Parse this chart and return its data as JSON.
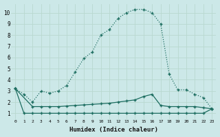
{
  "xlabel": "Humidex (Indice chaleur)",
  "xlim": [
    -0.5,
    23.5
  ],
  "ylim": [
    0.5,
    10.8
  ],
  "yticks": [
    1,
    2,
    3,
    4,
    5,
    6,
    7,
    8,
    9,
    10
  ],
  "xticks": [
    0,
    1,
    2,
    3,
    4,
    5,
    6,
    7,
    8,
    9,
    10,
    11,
    12,
    13,
    14,
    15,
    16,
    17,
    18,
    19,
    20,
    21,
    22,
    23
  ],
  "background_color": "#cce8e8",
  "line_color": "#1a6b5e",
  "grid_color": "#b8d8d0",
  "series": [
    {
      "x": [
        0,
        1,
        2,
        3,
        4,
        5,
        6,
        7,
        8,
        9,
        10,
        11,
        12,
        13,
        14,
        15,
        16,
        17,
        18,
        19,
        20,
        21,
        22,
        23
      ],
      "y": [
        3.2,
        1.0,
        1.0,
        1.0,
        1.0,
        1.0,
        1.0,
        1.0,
        1.0,
        1.0,
        1.0,
        1.0,
        1.0,
        1.0,
        1.0,
        1.0,
        1.0,
        1.0,
        1.0,
        1.0,
        1.0,
        1.0,
        1.0,
        1.4
      ],
      "dotted": false,
      "marker": "+"
    },
    {
      "x": [
        0,
        2,
        3,
        4,
        5,
        6,
        7,
        8,
        9,
        10,
        11,
        12,
        13,
        14,
        15,
        16,
        17,
        18,
        19,
        20,
        21,
        22,
        23
      ],
      "y": [
        3.2,
        1.6,
        1.6,
        1.6,
        1.6,
        1.65,
        1.7,
        1.75,
        1.8,
        1.85,
        1.9,
        2.0,
        2.1,
        2.2,
        2.5,
        2.7,
        1.7,
        1.6,
        1.6,
        1.6,
        1.6,
        1.5,
        1.4
      ],
      "dotted": false,
      "marker": "+"
    },
    {
      "x": [
        0,
        1,
        2,
        3,
        4,
        5,
        6,
        7,
        8,
        9,
        10,
        11,
        12,
        13,
        14,
        15,
        16,
        17,
        18,
        19,
        20,
        21,
        22,
        23
      ],
      "y": [
        3.2,
        2.7,
        2.0,
        3.0,
        2.8,
        3.0,
        3.5,
        4.7,
        5.9,
        6.5,
        8.0,
        8.5,
        9.5,
        10.0,
        10.3,
        10.3,
        10.0,
        9.0,
        4.5,
        3.1,
        3.1,
        2.7,
        2.4,
        1.4
      ],
      "dotted": true,
      "marker": "+"
    }
  ]
}
